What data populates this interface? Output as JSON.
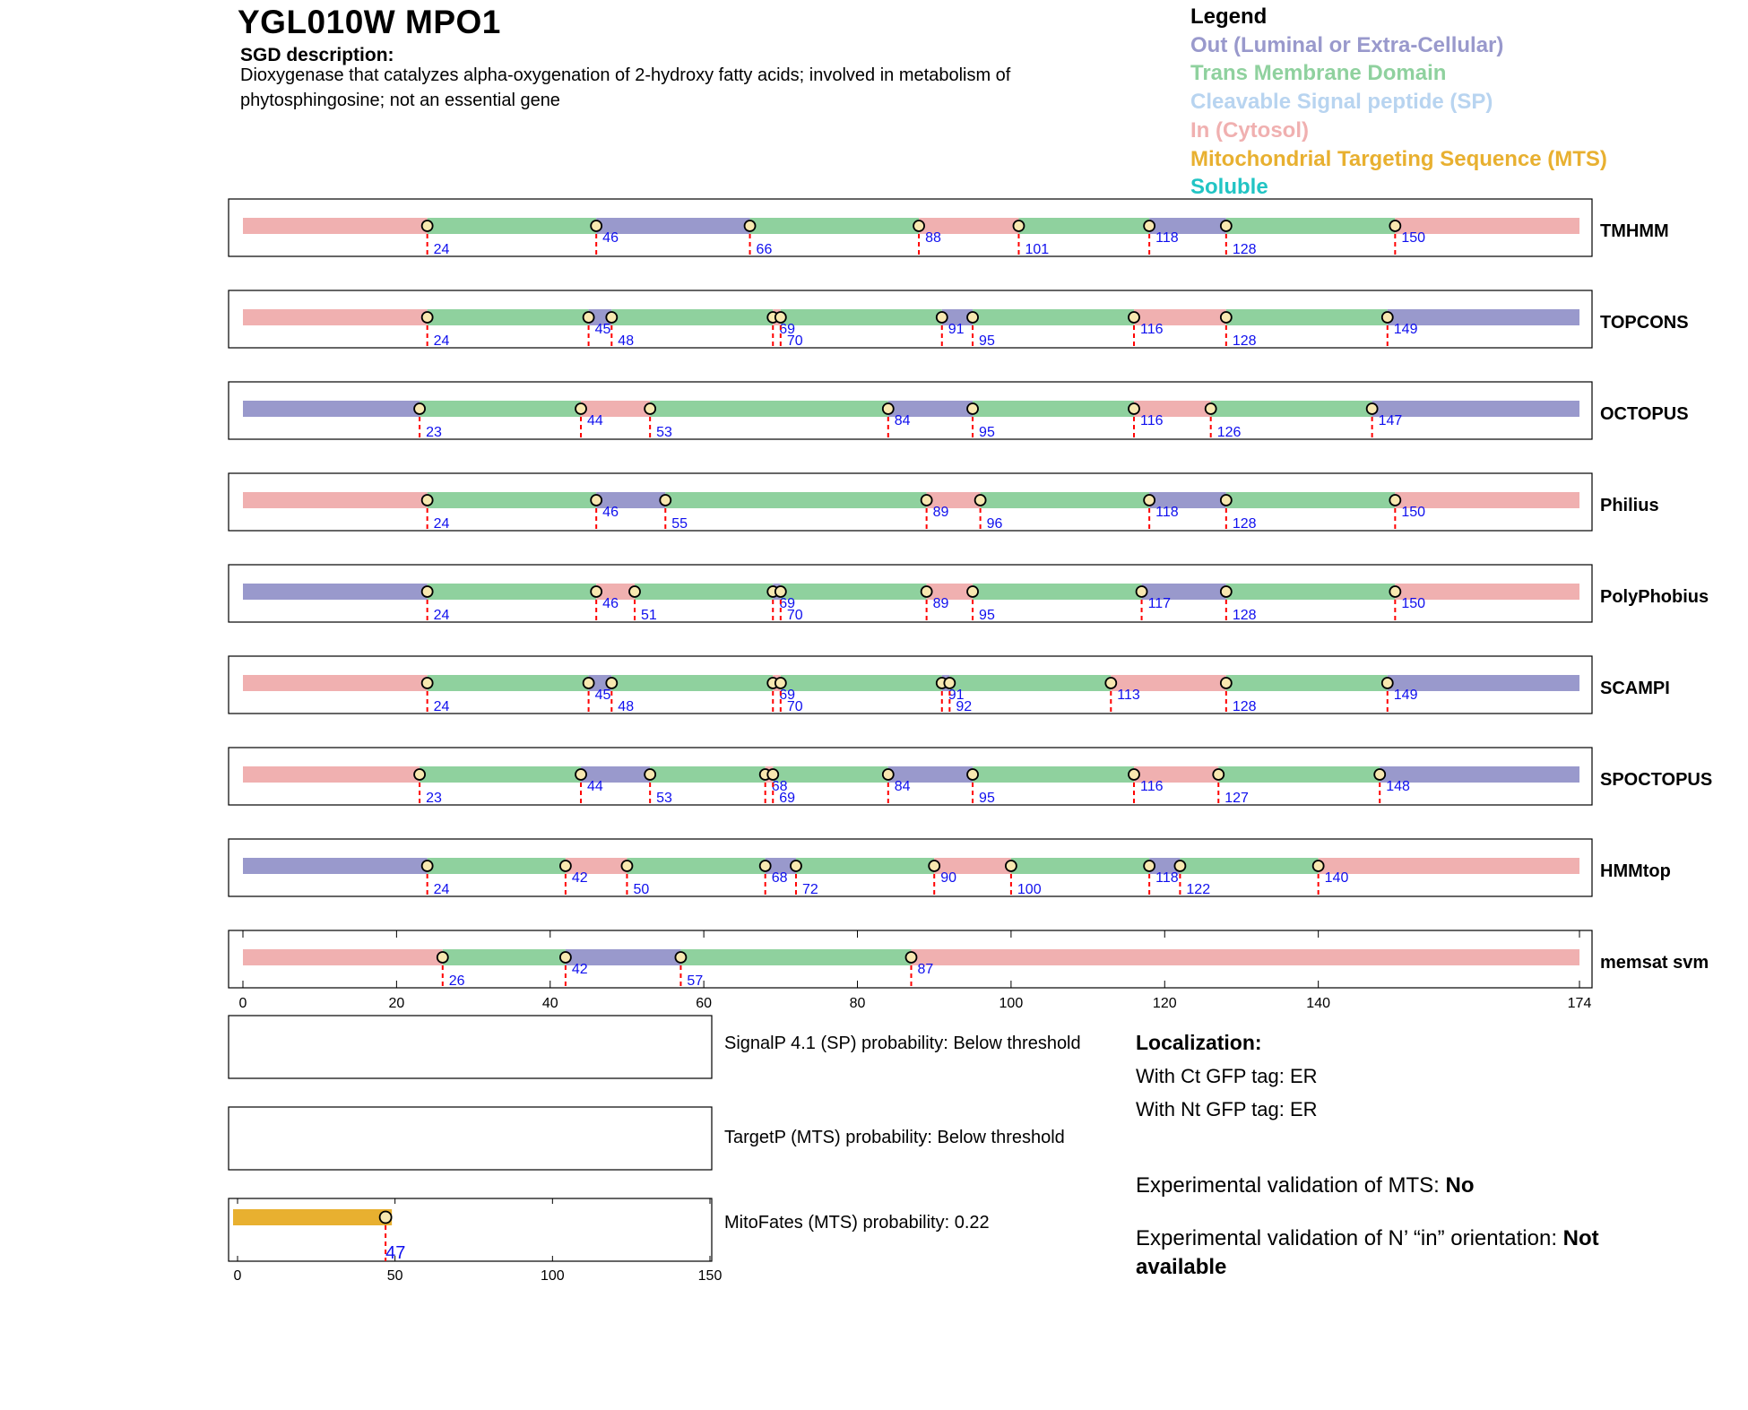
{
  "header": {
    "title": "YGL010W  MPO1",
    "sgd_heading": "SGD description:",
    "sgd_text": "Dioxygenase that catalyzes alpha-oxygenation of 2-hydroxy fatty acids; involved in metabolism of phytosphingosine; not an essential gene"
  },
  "legend": {
    "title": "Legend",
    "items": [
      {
        "label": "Out (Luminal or Extra-Cellular)",
        "color": "#9999cc"
      },
      {
        "label": "Trans Membrane Domain",
        "color": "#8fd19e"
      },
      {
        "label": "Cleavable Signal peptide (SP)",
        "color": "#b8d4f0"
      },
      {
        "label": "In (Cytosol)",
        "color": "#f0b0b0"
      },
      {
        "label": "Mitochondrial Targeting Sequence (MTS)",
        "color": "#e8b030"
      },
      {
        "label": "Soluble",
        "color": "#22c4c4"
      }
    ]
  },
  "colors": {
    "out": "#9999cc",
    "tm": "#8fd19e",
    "in": "#f0b0b0",
    "mts": "#e8b030",
    "boundary": "#ff0000",
    "label": "#1010ee"
  },
  "chart_data": {
    "type": "bar",
    "protein_length": 174,
    "x_ticks": [
      "0",
      "20",
      "40",
      "60",
      "80",
      "100",
      "120",
      "140",
      "174"
    ],
    "predictors": [
      {
        "name": "TMHMM",
        "start": "in",
        "boundaries": [
          24,
          46,
          66,
          88,
          101,
          118,
          128,
          150
        ]
      },
      {
        "name": "TOPCONS",
        "start": "in",
        "boundaries": [
          24,
          45,
          48,
          69,
          70,
          91,
          95,
          116,
          128,
          149
        ]
      },
      {
        "name": "OCTOPUS",
        "start": "out",
        "boundaries": [
          23,
          44,
          53,
          84,
          95,
          116,
          126,
          147
        ]
      },
      {
        "name": "Philius",
        "start": "in",
        "boundaries": [
          24,
          46,
          55,
          89,
          96,
          118,
          128,
          150
        ]
      },
      {
        "name": "PolyPhobius",
        "start": "out",
        "boundaries": [
          24,
          46,
          51,
          69,
          70,
          89,
          95,
          117,
          128,
          150
        ]
      },
      {
        "name": "SCAMPI",
        "start": "in",
        "boundaries": [
          24,
          45,
          48,
          69,
          70,
          91,
          92,
          113,
          128,
          149
        ]
      },
      {
        "name": "SPOCTOPUS",
        "start": "in",
        "boundaries": [
          23,
          44,
          53,
          68,
          69,
          84,
          95,
          116,
          127,
          148
        ]
      },
      {
        "name": "HMMtop",
        "start": "out",
        "boundaries": [
          24,
          42,
          50,
          68,
          72,
          90,
          100,
          118,
          122,
          140
        ]
      },
      {
        "name": "memsat svm",
        "start": "in",
        "boundaries": [
          26,
          42,
          57,
          87
        ]
      }
    ],
    "mitofates": {
      "end": 47,
      "max": 150,
      "ticks": [
        "0",
        "50",
        "100",
        "150"
      ]
    }
  },
  "predictions": {
    "signalp": "SignalP 4.1 (SP) probability: Below threshold",
    "targetp": "TargetP (MTS) probability: Below threshold",
    "mitofates": "MitoFates (MTS) probability: 0.22"
  },
  "localization": {
    "heading": "Localization:",
    "ct": "With Ct GFP tag: ER",
    "nt": "With Nt GFP tag: ER"
  },
  "experimental": {
    "mts_label": "Experimental validation of MTS: ",
    "mts_value": "No",
    "orientation_label": "Experimental validation of N’ “in” orientation: ",
    "orientation_value": "Not available"
  }
}
